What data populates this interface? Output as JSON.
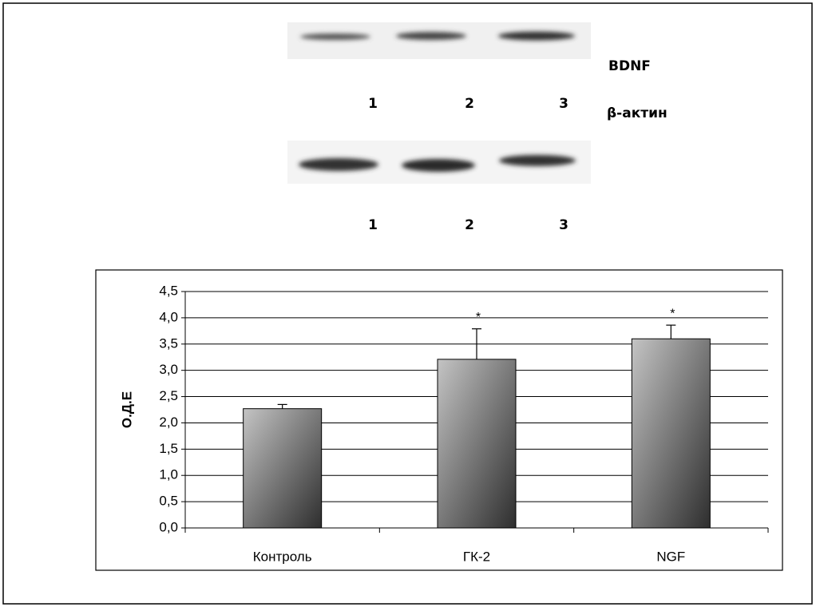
{
  "blots": {
    "bdnf_label": "BDNF",
    "actin_label": "β-актин",
    "lanes": [
      "1",
      "2",
      "3"
    ]
  },
  "chart_data": {
    "type": "bar",
    "ylabel": "О.Д.Е",
    "categories": [
      "Контроль",
      "ГК-2",
      "NGF"
    ],
    "values": [
      2.27,
      3.21,
      3.6
    ],
    "errors": [
      0.08,
      0.58,
      0.26
    ],
    "markers": [
      null,
      "*",
      "*"
    ],
    "colors": [
      "#c4c4c4",
      "#2e2e2e"
    ],
    "ylim": [
      0,
      4.5
    ],
    "yticks": [
      {
        "value": 0,
        "label": "0,0"
      },
      {
        "value": 0.5,
        "label": "0,5"
      },
      {
        "value": 1,
        "label": "1,0"
      },
      {
        "value": 1.5,
        "label": "1,5"
      },
      {
        "value": 2,
        "label": "2,0"
      },
      {
        "value": 2.5,
        "label": "2,5"
      },
      {
        "value": 3,
        "label": "3,0"
      },
      {
        "value": 3.5,
        "label": "3,5"
      },
      {
        "value": 4,
        "label": "4,0"
      },
      {
        "value": 4.5,
        "label": "4,5"
      }
    ],
    "grid": true
  }
}
